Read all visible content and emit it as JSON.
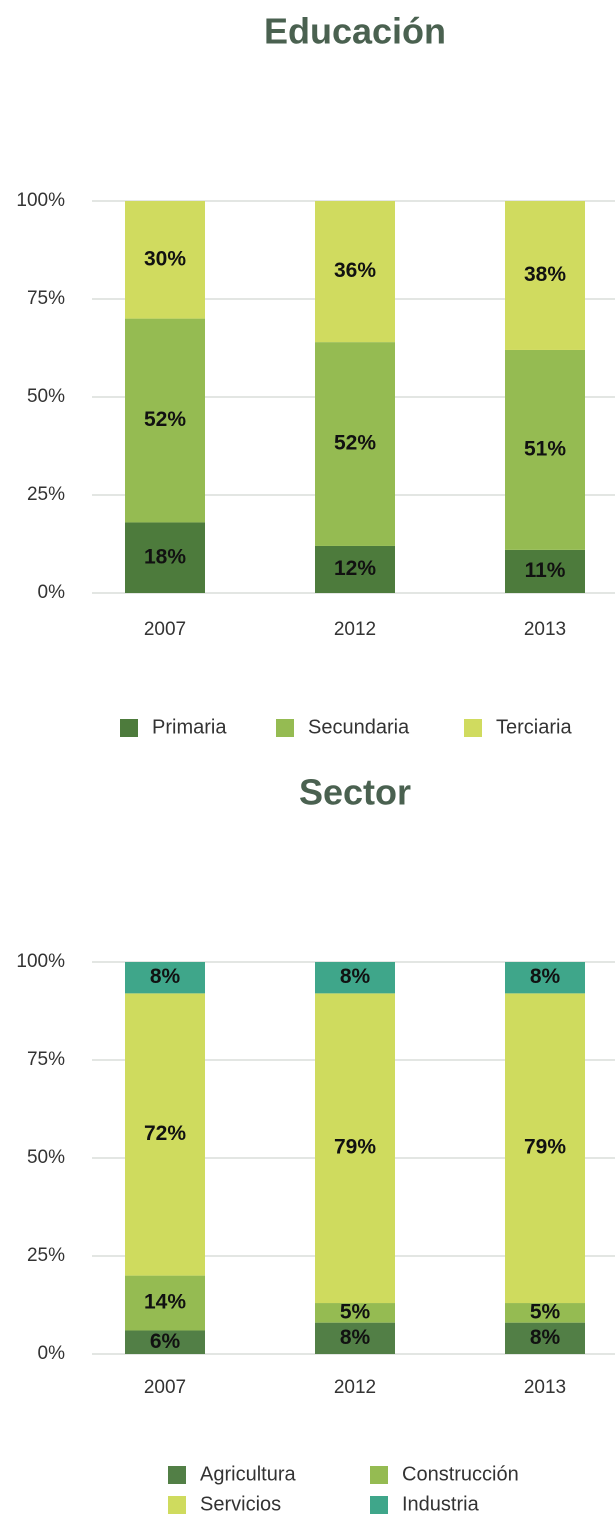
{
  "chart_data": [
    {
      "type": "bar",
      "stacked": true,
      "title": "Educación",
      "categories": [
        "2007",
        "2012",
        "2013"
      ],
      "series": [
        {
          "name": "Primaria",
          "color": "#4d7b3c",
          "values": [
            18,
            12,
            11
          ],
          "value_labels": [
            "18%",
            "12%",
            "11%"
          ]
        },
        {
          "name": "Secundaria",
          "color": "#95bb52",
          "values": [
            52,
            52,
            51
          ],
          "value_labels": [
            "52%",
            "52%",
            "51%"
          ]
        },
        {
          "name": "Terciaria",
          "color": "#d0db5f",
          "values": [
            30,
            36,
            38
          ],
          "value_labels": [
            "30%",
            "36%",
            "38%"
          ]
        }
      ],
      "ylim": [
        0,
        100
      ],
      "yticks": [
        {
          "value": 0,
          "label": "0%"
        },
        {
          "value": 25,
          "label": "25%"
        },
        {
          "value": 50,
          "label": "50%"
        },
        {
          "value": 75,
          "label": "75%"
        },
        {
          "value": 100,
          "label": "100%"
        }
      ],
      "grid": true
    },
    {
      "type": "bar",
      "stacked": true,
      "title": "Sector",
      "categories": [
        "2007",
        "2012",
        "2013"
      ],
      "series": [
        {
          "name": "Agricultura",
          "color": "#527f46",
          "values": [
            6,
            8,
            8
          ],
          "value_labels": [
            "6%",
            "8%",
            "8%"
          ]
        },
        {
          "name": "Construcción",
          "color": "#95bb52",
          "values": [
            14,
            5,
            5
          ],
          "value_labels": [
            "14%",
            "5%",
            "5%"
          ]
        },
        {
          "name": "Servicios",
          "color": "#cfdb5e",
          "values": [
            72,
            79,
            79
          ],
          "value_labels": [
            "72%",
            "79%",
            "79%"
          ]
        },
        {
          "name": "Industria",
          "color": "#3fa68a",
          "values": [
            8,
            8,
            8
          ],
          "value_labels": [
            "8%",
            "8%",
            "8%"
          ]
        }
      ],
      "ylim": [
        0,
        100
      ],
      "yticks": [
        {
          "value": 0,
          "label": "0%"
        },
        {
          "value": 25,
          "label": "25%"
        },
        {
          "value": 50,
          "label": "50%"
        },
        {
          "value": 75,
          "label": "75%"
        },
        {
          "value": 100,
          "label": "100%"
        }
      ],
      "grid": true
    }
  ]
}
